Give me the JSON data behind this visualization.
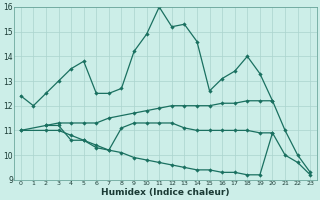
{
  "xlabel": "Humidex (Indice chaleur)",
  "bg_color": "#cceee8",
  "grid_color": "#aad4ce",
  "line_color": "#1a7060",
  "xlim": [
    -0.5,
    23.5
  ],
  "ylim": [
    9,
    16
  ],
  "yticks": [
    9,
    10,
    11,
    12,
    13,
    14,
    15,
    16
  ],
  "xticks": [
    0,
    1,
    2,
    3,
    4,
    5,
    6,
    7,
    8,
    9,
    10,
    11,
    12,
    13,
    14,
    15,
    16,
    17,
    18,
    19,
    20,
    21,
    22,
    23
  ],
  "line1_x": [
    0,
    1,
    2,
    3,
    4,
    5,
    6,
    7,
    8,
    9,
    10,
    11,
    12,
    13,
    14,
    15,
    16,
    17,
    18,
    19,
    20
  ],
  "line1_y": [
    12.4,
    12.0,
    12.5,
    13.0,
    13.5,
    13.8,
    12.5,
    12.5,
    12.7,
    14.2,
    14.9,
    16.0,
    15.2,
    15.3,
    14.6,
    12.6,
    13.1,
    13.4,
    14.0,
    13.3,
    12.2
  ],
  "line2_x": [
    2,
    3,
    4,
    5,
    6,
    7,
    8,
    9,
    10,
    11,
    12,
    13,
    14,
    15,
    16,
    17,
    18,
    19,
    20
  ],
  "line2_y": [
    11.2,
    11.2,
    10.6,
    10.6,
    10.3,
    10.2,
    11.1,
    11.3,
    11.3,
    11.3,
    11.3,
    11.1,
    11.0,
    11.0,
    11.0,
    11.0,
    11.0,
    10.9,
    10.9
  ],
  "line3_x": [
    0,
    2,
    3,
    4,
    5,
    6,
    7,
    9,
    10,
    11,
    12,
    13,
    14,
    15,
    16,
    17,
    18,
    19,
    20,
    21,
    22,
    23
  ],
  "line3_y": [
    11.0,
    11.2,
    11.3,
    11.3,
    11.3,
    11.3,
    11.5,
    11.7,
    11.8,
    11.9,
    12.0,
    12.0,
    12.0,
    12.0,
    12.1,
    12.1,
    12.2,
    12.2,
    12.2,
    11.0,
    10.0,
    9.3
  ],
  "line4_x": [
    0,
    2,
    3,
    4,
    5,
    6,
    7,
    8,
    9,
    10,
    11,
    12,
    13,
    14,
    15,
    16,
    17,
    18,
    19,
    20,
    21,
    22,
    23
  ],
  "line4_y": [
    11.0,
    11.0,
    11.0,
    10.8,
    10.6,
    10.4,
    10.2,
    10.1,
    9.9,
    9.8,
    9.7,
    9.6,
    9.5,
    9.4,
    9.4,
    9.3,
    9.3,
    9.2,
    9.2,
    10.9,
    10.0,
    9.7,
    9.2
  ]
}
